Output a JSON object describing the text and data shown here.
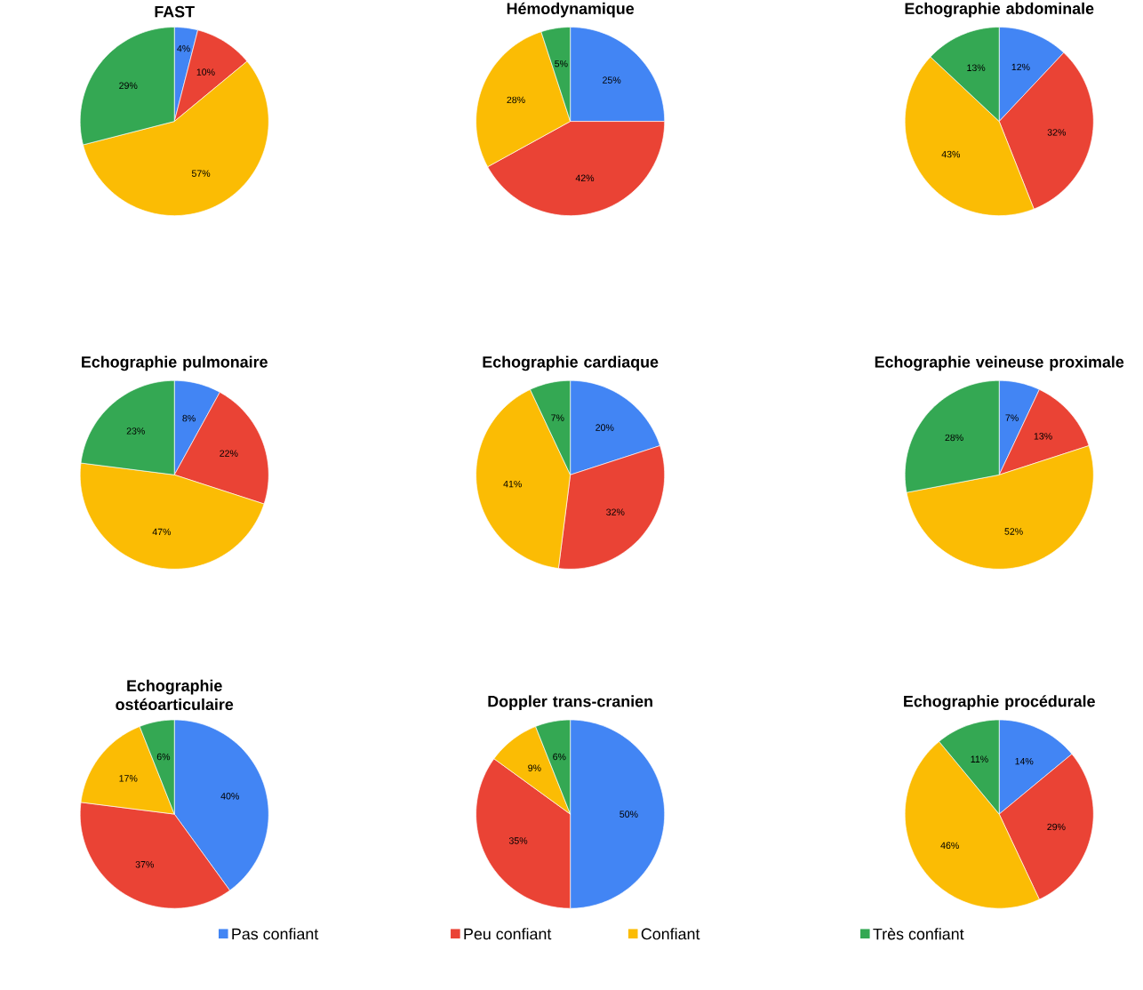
{
  "chart_data": [
    {
      "type": "pie",
      "title": "FAST",
      "values": [
        4,
        10,
        57,
        29
      ],
      "value_labels": [
        "4%",
        "10%",
        "57%",
        "29%"
      ],
      "colors": [
        "#4285f4",
        "#ea4335",
        "#fbbc04",
        "#34a853"
      ]
    },
    {
      "type": "pie",
      "title": "Hémodynamique",
      "values": [
        25,
        42,
        28,
        5
      ],
      "value_labels": [
        "25%",
        "42%",
        "28%",
        "5%"
      ],
      "colors": [
        "#4285f4",
        "#ea4335",
        "#fbbc04",
        "#34a853"
      ]
    },
    {
      "type": "pie",
      "title": "Echographie abdominale",
      "values": [
        12,
        32,
        43,
        13
      ],
      "value_labels": [
        "12%",
        "32%",
        "43%",
        "13%"
      ],
      "colors": [
        "#4285f4",
        "#ea4335",
        "#fbbc04",
        "#34a853"
      ]
    },
    {
      "type": "pie",
      "title": "Echographie pulmonaire",
      "values": [
        8,
        22,
        47,
        23
      ],
      "value_labels": [
        "8%",
        "22%",
        "47%",
        "23%"
      ],
      "colors": [
        "#4285f4",
        "#ea4335",
        "#fbbc04",
        "#34a853"
      ]
    },
    {
      "type": "pie",
      "title": "Echographie cardiaque",
      "values": [
        20,
        32,
        41,
        7
      ],
      "value_labels": [
        "20%",
        "32%",
        "41%",
        "7%"
      ],
      "colors": [
        "#4285f4",
        "#ea4335",
        "#fbbc04",
        "#34a853"
      ]
    },
    {
      "type": "pie",
      "title": "Echographie veineuse proximale",
      "values": [
        7,
        13,
        52,
        28
      ],
      "value_labels": [
        "7%",
        "13%",
        "52%",
        "28%"
      ],
      "colors": [
        "#4285f4",
        "#ea4335",
        "#fbbc04",
        "#34a853"
      ]
    },
    {
      "type": "pie",
      "title": "Echographie ostéoarticulaire",
      "values": [
        40,
        37,
        17,
        6
      ],
      "value_labels": [
        "40%",
        "37%",
        "17%",
        "6%"
      ],
      "colors": [
        "#4285f4",
        "#ea4335",
        "#fbbc04",
        "#34a853"
      ]
    },
    {
      "type": "pie",
      "title": "Doppler trans-cranien",
      "categories": [
        "Pas confiant",
        "Peu confiant",
        "Confiant",
        "Très confiant"
      ],
      "values": [
        50,
        35,
        9,
        6
      ],
      "value_labels": [
        "50%",
        "35%",
        "9%",
        "6%"
      ],
      "colors": [
        "#4285f4",
        "#ea4335",
        "#fbbc04",
        "#34a853"
      ],
      "legend": "bottom"
    },
    {
      "type": "pie",
      "title": "Echographie procédurale",
      "values": [
        14,
        29,
        46,
        11
      ],
      "value_labels": [
        "14%",
        "29%",
        "46%",
        "11%"
      ],
      "colors": [
        "#4285f4",
        "#ea4335",
        "#fbbc04",
        "#34a853"
      ]
    }
  ]
}
